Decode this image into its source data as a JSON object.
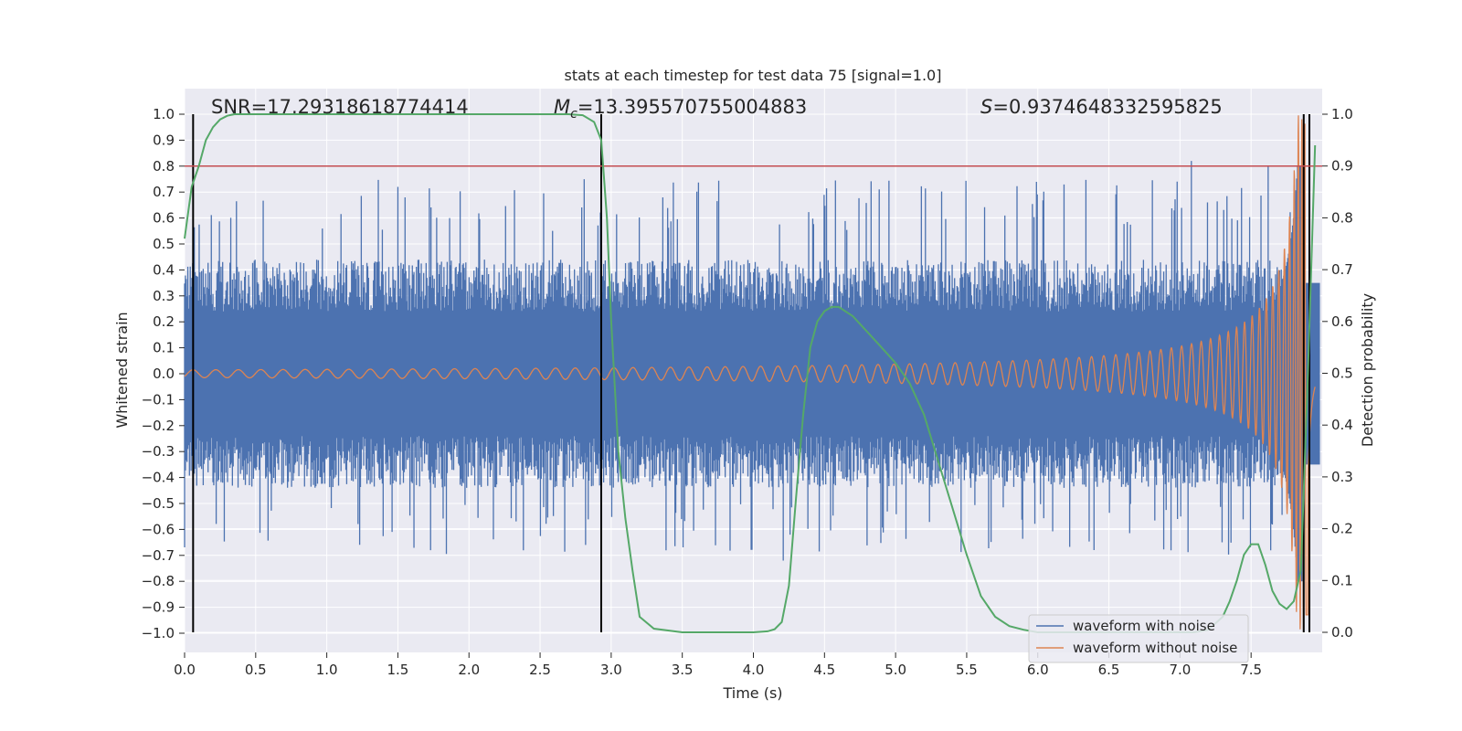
{
  "chart_data": {
    "type": "line",
    "title": "stats at each timestep for test data 75 [signal=1.0]",
    "xlabel": "Time (s)",
    "ylabel": "Whitened strain",
    "y2label": "Detection probability",
    "xlim": [
      0.0,
      8.0
    ],
    "ylim": [
      -1.08,
      1.08
    ],
    "y2lim": [
      -0.04,
      1.04
    ],
    "xticks": [
      "0.0",
      "0.5",
      "1.0",
      "1.5",
      "2.0",
      "2.5",
      "3.0",
      "3.5",
      "4.0",
      "4.5",
      "5.0",
      "5.5",
      "6.0",
      "6.5",
      "7.0",
      "7.5"
    ],
    "yticks": [
      "1.0",
      "0.9",
      "0.8",
      "0.7",
      "0.6",
      "0.5",
      "0.4",
      "0.3",
      "0.2",
      "0.1",
      "0.0",
      "-0.1",
      "-0.2",
      "-0.3",
      "-0.4",
      "-0.5",
      "-0.6",
      "-0.7",
      "-0.8",
      "-0.9",
      "-1.0"
    ],
    "y2ticks": [
      "1.0",
      "0.9",
      "0.8",
      "0.7",
      "0.6",
      "0.5",
      "0.4",
      "0.3",
      "0.2",
      "0.1",
      "0.0"
    ],
    "grid": true,
    "legend_position": "lower-right",
    "annotations": {
      "snr": "SNR=17.29318618774414",
      "mc_symbol": "M",
      "mc_sub": "c",
      "mc_value": "=13.395570755004883",
      "s_symbol": "S",
      "s_value": "=0.9374648332595825"
    },
    "series": [
      {
        "name": "waveform with noise",
        "color": "#4c72b0",
        "style": "noise",
        "amplitude_typical": 0.4,
        "amplitude_max": 0.82
      },
      {
        "name": "waveform without noise",
        "color": "#dd8452",
        "style": "chirp",
        "amplitude_start": 0.015,
        "amplitude_end": 1.0,
        "t_merge": 7.9
      },
      {
        "name": "detection probability",
        "color": "#55a868",
        "axis": "right",
        "x": [
          0.0,
          0.05,
          0.1,
          0.15,
          0.2,
          0.25,
          0.3,
          0.35,
          0.4,
          0.5,
          1.0,
          2.0,
          2.5,
          2.7,
          2.8,
          2.88,
          2.93,
          2.97,
          3.0,
          3.05,
          3.1,
          3.15,
          3.2,
          3.3,
          3.5,
          4.0,
          4.1,
          4.15,
          4.2,
          4.25,
          4.3,
          4.35,
          4.4,
          4.45,
          4.5,
          4.55,
          4.6,
          4.7,
          4.8,
          4.9,
          5.0,
          5.1,
          5.2,
          5.3,
          5.4,
          5.5,
          5.6,
          5.7,
          5.8,
          5.9,
          6.0,
          6.5,
          7.0,
          7.1,
          7.2,
          7.3,
          7.35,
          7.4,
          7.45,
          7.5,
          7.55,
          7.6,
          7.65,
          7.7,
          7.75,
          7.8,
          7.85,
          7.9,
          7.95
        ],
        "y": [
          0.76,
          0.86,
          0.9,
          0.95,
          0.975,
          0.99,
          0.997,
          1.0,
          1.0,
          1.0,
          1.0,
          1.0,
          1.0,
          1.0,
          0.998,
          0.985,
          0.95,
          0.8,
          0.6,
          0.35,
          0.22,
          0.12,
          0.03,
          0.007,
          0.0,
          0.0,
          0.002,
          0.006,
          0.02,
          0.09,
          0.26,
          0.42,
          0.55,
          0.6,
          0.62,
          0.628,
          0.628,
          0.61,
          0.58,
          0.55,
          0.52,
          0.48,
          0.42,
          0.33,
          0.24,
          0.15,
          0.07,
          0.03,
          0.012,
          0.005,
          0.0,
          0.0,
          0.0,
          0.0,
          0.005,
          0.03,
          0.06,
          0.1,
          0.15,
          0.17,
          0.17,
          0.13,
          0.08,
          0.055,
          0.045,
          0.06,
          0.12,
          0.5,
          0.94
        ]
      },
      {
        "name": "threshold",
        "color": "#c44e52",
        "axis": "right",
        "y_const": 0.9
      }
    ],
    "vlines": [
      0.06,
      2.93,
      7.87,
      7.91
    ]
  },
  "legend": {
    "items": [
      {
        "label": "waveform with noise",
        "color": "#4c72b0"
      },
      {
        "label": "waveform without noise",
        "color": "#dd8452"
      }
    ]
  }
}
